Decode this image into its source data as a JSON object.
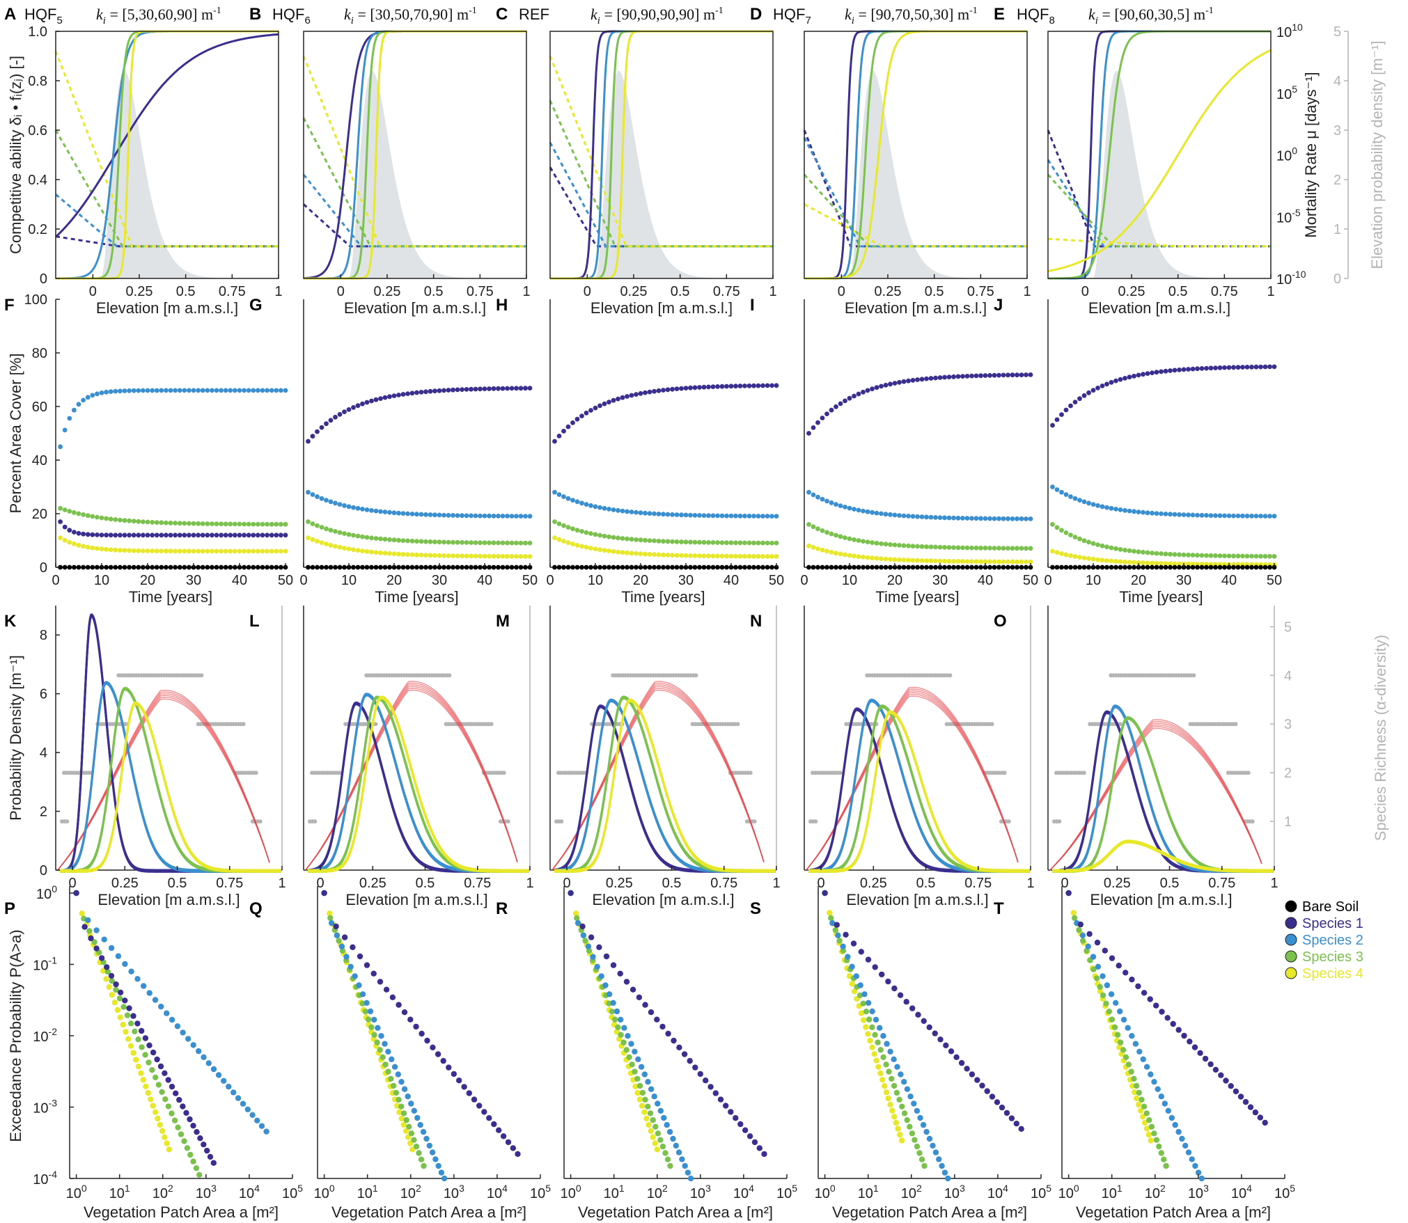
{
  "colors": {
    "species1": "#3a2e8f",
    "species2": "#3a8fd0",
    "species3": "#7ac14e",
    "species4": "#e8e82a",
    "bare": "#000000",
    "density_fill": "#dfe3e6",
    "richness_dots": "#b4b4b4",
    "fit": "#e8454a"
  },
  "legend": [
    "Bare Soil",
    "Species 1",
    "Species 2",
    "Species 3",
    "Species 4"
  ],
  "panels_row1": [
    {
      "label": "A",
      "title": "HQF",
      "sub": "5",
      "k": "[5,30,60,90]"
    },
    {
      "label": "B",
      "title": "HQF",
      "sub": "6",
      "k": "[30,50,70,90]"
    },
    {
      "label": "C",
      "title": "REF",
      "sub": "",
      "k": "[90,90,90,90]"
    },
    {
      "label": "D",
      "title": "HQF",
      "sub": "7",
      "k": "[90,70,50,30]"
    },
    {
      "label": "E",
      "title": "HQF",
      "sub": "8",
      "k": "[90,60,30,5]"
    }
  ],
  "k_prefix": "k",
  "k_sub": "i",
  "k_unit": "m",
  "labels_row2": [
    "F",
    "G",
    "H",
    "I",
    "J"
  ],
  "labels_row3": [
    "K",
    "L",
    "M",
    "N",
    "O"
  ],
  "labels_row4": [
    "P",
    "Q",
    "R",
    "S",
    "T"
  ],
  "axes": {
    "competitive": "Competitive ability  δᵢ • fᵢ(zⱼ) [-]",
    "elevation": "Elevation [m a.m.s.l.]",
    "mortality": "Mortality Rate μ [days⁻¹]",
    "elev_density": "Elevation probability density [m⁻¹]",
    "cover": "Percent Area Cover [%]",
    "time": "Time [years]",
    "prob_density": "Probability Density [m⁻¹]",
    "richness": "Species Richness (α-diversity)",
    "exceedance": "Exceedance Probability P(A>a)",
    "patch_area": "Vegetation Patch Area a [m²]"
  },
  "chart_data": [
    {
      "type": "line",
      "title": "Competitive ability and mortality vs elevation (A–E)",
      "xlabel": "Elevation [m a.m.s.l.]",
      "ylabel": "Competitive ability [-]",
      "y2label": "Mortality Rate [days^-1]",
      "y3label": "Elevation probability density [m^-1]",
      "xlim": [
        -0.2,
        1
      ],
      "ylim": [
        0,
        1
      ],
      "xticks": [
        0,
        0.25,
        0.5,
        0.75,
        1
      ],
      "xtick_labels": [
        "0",
        "0.25",
        "0.5",
        "0.75",
        "1"
      ],
      "yticks": [
        0,
        0.2,
        0.4,
        0.6,
        0.8,
        1.0
      ],
      "ytick_labels": [
        "0",
        "0.2",
        "0.4",
        "0.6",
        "0.8",
        "1.0"
      ],
      "y2tick_labels": [
        "10^10",
        "10^5",
        "10^0",
        "10^-5",
        "10^-10"
      ],
      "y3tick_labels": [
        "5",
        "4",
        "3",
        "2",
        "1",
        "0"
      ],
      "panels": [
        {
          "k": [
            5,
            30,
            60,
            90
          ],
          "midpoints": [
            0.12,
            0.11,
            0.14,
            0.19
          ],
          "mortality_start": [
            0.17,
            0.34,
            0.6,
            0.92
          ]
        },
        {
          "k": [
            30,
            50,
            70,
            90
          ],
          "midpoints": [
            0.03,
            0.09,
            0.14,
            0.19
          ],
          "mortality_start": [
            0.3,
            0.42,
            0.65,
            0.9
          ]
        },
        {
          "k": [
            90,
            90,
            90,
            90
          ],
          "midpoints": [
            0.03,
            0.08,
            0.13,
            0.19
          ],
          "mortality_start": [
            0.45,
            0.55,
            0.72,
            0.9
          ]
        },
        {
          "k": [
            90,
            70,
            50,
            30
          ],
          "midpoints": [
            0.03,
            0.08,
            0.13,
            0.2
          ],
          "mortality_start": [
            0.6,
            0.57,
            0.42,
            0.3
          ]
        },
        {
          "k": [
            90,
            60,
            30,
            5
          ],
          "midpoints": [
            0.03,
            0.08,
            0.13,
            0.5
          ],
          "mortality_start": [
            0.6,
            0.48,
            0.42,
            0.16
          ]
        }
      ],
      "baseline_mortality": 0.13
    },
    {
      "type": "scatter",
      "title": "Percent area cover vs time (F–J)",
      "xlabel": "Time [years]",
      "ylabel": "Percent Area Cover [%]",
      "xlim": [
        0,
        50
      ],
      "ylim": [
        0,
        100
      ],
      "xticks": [
        0,
        10,
        20,
        30,
        40,
        50
      ],
      "yticks": [
        0,
        20,
        40,
        60,
        80,
        100
      ],
      "series_order": [
        "species1",
        "species2",
        "species3",
        "species4",
        "bare"
      ],
      "panels": [
        {
          "start": [
            17,
            45,
            22,
            11,
            0
          ],
          "final": [
            12,
            66,
            16,
            6,
            0
          ],
          "rate": [
            0.5,
            0.35,
            0.1,
            0.2,
            1
          ]
        },
        {
          "start": [
            47,
            28,
            17,
            11,
            0
          ],
          "final": [
            67,
            19,
            9,
            4,
            0
          ],
          "rate": [
            0.1,
            0.1,
            0.1,
            0.1,
            1
          ]
        },
        {
          "start": [
            47,
            28,
            17,
            11,
            0
          ],
          "final": [
            68,
            19,
            9,
            4,
            0
          ],
          "rate": [
            0.1,
            0.1,
            0.1,
            0.1,
            1
          ]
        },
        {
          "start": [
            50,
            28,
            16,
            8,
            0
          ],
          "final": [
            72,
            18,
            7,
            2,
            0
          ],
          "rate": [
            0.1,
            0.1,
            0.1,
            0.1,
            1
          ]
        },
        {
          "start": [
            53,
            30,
            16,
            6,
            0
          ],
          "final": [
            75,
            19,
            4,
            1,
            0
          ],
          "rate": [
            0.1,
            0.1,
            0.1,
            0.1,
            1
          ]
        }
      ]
    },
    {
      "type": "line",
      "title": "Probability density of species vs elevation (K–O)",
      "xlabel": "Elevation [m a.m.s.l.]",
      "ylabel": "Probability Density [m^-1]",
      "y2label": "Species Richness (α-diversity)",
      "xlim": [
        -0.08,
        1
      ],
      "ylim": [
        0,
        9
      ],
      "xticks": [
        0,
        0.25,
        0.5,
        0.75,
        1
      ],
      "xtick_labels": [
        "0",
        "0.25",
        "0.5",
        "0.75",
        "1"
      ],
      "yticks": [
        0,
        2,
        4,
        6,
        8
      ],
      "y2ticks": [
        1,
        2,
        3,
        4,
        5
      ],
      "panels": [
        {
          "peaks": [
            [
              0.09,
              8.7,
              0.05
            ],
            [
              0.16,
              6.4,
              0.08
            ],
            [
              0.25,
              6.2,
              0.09
            ],
            [
              0.3,
              5.7,
              0.09
            ]
          ],
          "fit_peak": 6.0
        },
        {
          "peaks": [
            [
              0.17,
              5.7,
              0.09
            ],
            [
              0.22,
              6.0,
              0.1
            ],
            [
              0.27,
              5.9,
              0.1
            ],
            [
              0.29,
              5.9,
              0.1
            ]
          ],
          "fit_peak": 6.3
        },
        {
          "peaks": [
            [
              0.16,
              5.6,
              0.09
            ],
            [
              0.21,
              5.8,
              0.1
            ],
            [
              0.27,
              5.9,
              0.1
            ],
            [
              0.3,
              5.8,
              0.1
            ]
          ],
          "fit_peak": 6.3
        },
        {
          "peaks": [
            [
              0.17,
              5.5,
              0.09
            ],
            [
              0.24,
              5.8,
              0.1
            ],
            [
              0.29,
              5.6,
              0.1
            ],
            [
              0.33,
              5.4,
              0.1
            ]
          ],
          "fit_peak": 6.1
        },
        {
          "peaks": [
            [
              0.2,
              5.4,
              0.09
            ],
            [
              0.24,
              5.6,
              0.09
            ],
            [
              0.3,
              5.2,
              0.1
            ],
            [
              0.3,
              1.0,
              0.12
            ]
          ],
          "fit_peak": 5.0
        }
      ]
    },
    {
      "type": "scatter",
      "title": "Exceedance probability of vegetation patch area (P–T)",
      "xlabel": "Vegetation Patch Area a [m^2]",
      "ylabel": "Exceedance Probability P(A>a)",
      "xscale": "log",
      "yscale": "log",
      "xlim": [
        0.7,
        100000
      ],
      "ylim": [
        0.0001,
        1
      ],
      "xtick_labels": [
        "10^0",
        "10^1",
        "10^2",
        "10^3",
        "10^4",
        "10^5"
      ],
      "ytick_labels": [
        "10^0",
        "10^-1",
        "10^-2",
        "10^-3",
        "10^-4"
      ],
      "panels": [
        {
          "max_area": [
            1500,
            25000,
            700,
            140
          ],
          "tail_prob": [
            0.0003,
            0.0007,
            0.00015,
            0.0003
          ]
        },
        {
          "max_area": [
            30000,
            600,
            200,
            110
          ],
          "tail_prob": [
            0.0004,
            0.00015,
            0.0002,
            0.0003
          ]
        },
        {
          "max_area": [
            30000,
            600,
            200,
            100
          ],
          "tail_prob": [
            0.0004,
            0.00015,
            0.0002,
            0.0003
          ]
        },
        {
          "max_area": [
            35000,
            700,
            200,
            60
          ],
          "tail_prob": [
            0.0009,
            0.00015,
            0.0002,
            0.0004
          ]
        },
        {
          "max_area": [
            35000,
            1200,
            180,
            80
          ],
          "tail_prob": [
            0.0011,
            0.00015,
            0.0002,
            0.0004
          ]
        }
      ]
    }
  ]
}
